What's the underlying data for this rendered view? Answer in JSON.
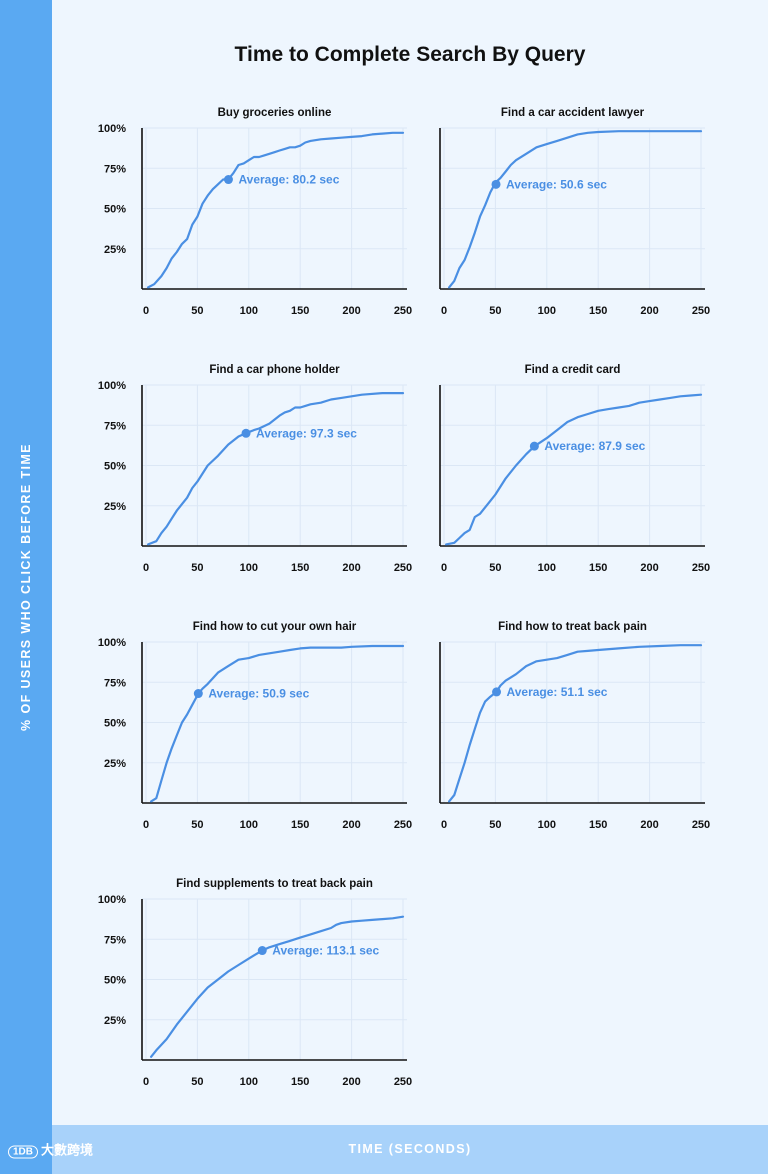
{
  "page": {
    "title": "Time to Complete Search By Query",
    "y_axis_title": "% OF USERS WHO CLICK BEFORE TIME",
    "x_axis_title": "TIME (SECONDS)",
    "watermark": "大數跨境",
    "watermark_logo": "1DB"
  },
  "colors": {
    "line": "#4a8fe3",
    "annotation": "#4a8fe3",
    "left_band": "#5aa9f2",
    "bottom_band": "#a8d2fa",
    "background": "#eef6fe",
    "grid": "#dbe7f5",
    "axis": "#111111"
  },
  "chart_data": [
    {
      "type": "line",
      "title": "Buy groceries online",
      "xlim": [
        0,
        250
      ],
      "ylim": [
        0,
        100
      ],
      "xticks": [
        0,
        50,
        100,
        150,
        200,
        250
      ],
      "yticks": [
        25,
        50,
        75,
        100
      ],
      "ytick_labels": [
        "25%",
        "50%",
        "75%",
        "100%"
      ],
      "annotation": {
        "text": "Average: 80.2 sec",
        "x": 80.2,
        "y": 68
      },
      "series": [
        {
          "x": [
            2,
            8,
            15,
            20,
            25,
            30,
            35,
            40,
            45,
            50,
            55,
            60,
            65,
            70,
            75,
            80,
            85,
            90,
            95,
            100,
            105,
            110,
            115,
            120,
            125,
            130,
            135,
            140,
            145,
            150,
            155,
            160,
            170,
            180,
            190,
            200,
            210,
            220,
            230,
            240,
            250
          ],
          "y": [
            1,
            3,
            8,
            13,
            19,
            23,
            28,
            31,
            40,
            45,
            53,
            58,
            62,
            65,
            68,
            68,
            72,
            77,
            78,
            80,
            82,
            82,
            83,
            84,
            85,
            86,
            87,
            88,
            88,
            89,
            91,
            92,
            93,
            93.5,
            94,
            94.5,
            95,
            96,
            96.5,
            97,
            97
          ]
        }
      ]
    },
    {
      "type": "line",
      "title": "Find a car accident lawyer",
      "xlim": [
        0,
        250
      ],
      "ylim": [
        0,
        100
      ],
      "xticks": [
        0,
        50,
        100,
        150,
        200,
        250
      ],
      "yticks": [
        25,
        50,
        75,
        100
      ],
      "ytick_labels": [],
      "annotation": {
        "text": "Average: 50.6 sec",
        "x": 50.6,
        "y": 65
      },
      "series": [
        {
          "x": [
            5,
            10,
            15,
            20,
            25,
            30,
            35,
            40,
            45,
            50,
            55,
            60,
            65,
            70,
            80,
            90,
            100,
            110,
            120,
            130,
            140,
            150,
            170,
            200,
            230,
            250
          ],
          "y": [
            1,
            5,
            13,
            18,
            26,
            35,
            45,
            52,
            60,
            66,
            69,
            73,
            77,
            80,
            84,
            88,
            90,
            92,
            94,
            96,
            97,
            97.5,
            98,
            98,
            98,
            98
          ]
        }
      ]
    },
    {
      "type": "line",
      "title": "Find a car phone holder",
      "xlim": [
        0,
        250
      ],
      "ylim": [
        0,
        100
      ],
      "xticks": [
        0,
        50,
        100,
        150,
        200,
        250
      ],
      "yticks": [
        25,
        50,
        75,
        100
      ],
      "ytick_labels": [
        "25%",
        "50%",
        "75%",
        "100%"
      ],
      "annotation": {
        "text": "Average: 97.3 sec",
        "x": 97.3,
        "y": 70
      },
      "series": [
        {
          "x": [
            2,
            10,
            15,
            20,
            25,
            30,
            35,
            40,
            45,
            50,
            55,
            60,
            70,
            80,
            90,
            97,
            105,
            110,
            120,
            130,
            135,
            140,
            145,
            150,
            155,
            160,
            170,
            180,
            190,
            200,
            210,
            230,
            250
          ],
          "y": [
            1,
            3,
            8,
            12,
            17,
            22,
            26,
            30,
            36,
            40,
            45,
            50,
            56,
            63,
            68,
            70,
            72,
            73,
            76,
            81,
            83,
            84,
            86,
            86,
            87,
            88,
            89,
            91,
            92,
            93,
            94,
            95,
            95
          ]
        }
      ]
    },
    {
      "type": "line",
      "title": "Find a credit card",
      "xlim": [
        0,
        250
      ],
      "ylim": [
        0,
        100
      ],
      "xticks": [
        0,
        50,
        100,
        150,
        200,
        250
      ],
      "yticks": [
        25,
        50,
        75,
        100
      ],
      "ytick_labels": [],
      "annotation": {
        "text": "Average: 87.9 sec",
        "x": 87.9,
        "y": 62
      },
      "series": [
        {
          "x": [
            2,
            10,
            15,
            20,
            25,
            30,
            35,
            40,
            45,
            50,
            60,
            70,
            80,
            88,
            95,
            100,
            110,
            120,
            130,
            140,
            150,
            160,
            170,
            180,
            190,
            200,
            210,
            220,
            230,
            240,
            250
          ],
          "y": [
            1,
            2,
            5,
            8,
            10,
            18,
            20,
            24,
            28,
            32,
            42,
            50,
            57,
            62,
            65,
            67,
            72,
            77,
            80,
            82,
            84,
            85,
            86,
            87,
            89,
            90,
            91,
            92,
            93,
            93.5,
            94
          ]
        }
      ]
    },
    {
      "type": "line",
      "title": "Find how to cut your own hair",
      "xlim": [
        0,
        250
      ],
      "ylim": [
        0,
        100
      ],
      "xticks": [
        0,
        50,
        100,
        150,
        200,
        250
      ],
      "yticks": [
        25,
        50,
        75,
        100
      ],
      "ytick_labels": [
        "25%",
        "50%",
        "75%",
        "100%"
      ],
      "annotation": {
        "text": "Average: 50.9 sec",
        "x": 50.9,
        "y": 68
      },
      "series": [
        {
          "x": [
            5,
            10,
            15,
            20,
            25,
            30,
            35,
            40,
            45,
            51,
            55,
            60,
            70,
            80,
            90,
            100,
            110,
            120,
            130,
            140,
            150,
            160,
            170,
            180,
            190,
            200,
            220,
            240,
            250
          ],
          "y": [
            1,
            3,
            14,
            25,
            34,
            42,
            50,
            55,
            61,
            68,
            71,
            74,
            81,
            85,
            89,
            90,
            92,
            93,
            94,
            95,
            96,
            96.5,
            96.5,
            96.5,
            96.5,
            97,
            97.5,
            97.5,
            97.5
          ]
        }
      ]
    },
    {
      "type": "line",
      "title": "Find how to treat back pain",
      "xlim": [
        0,
        250
      ],
      "ylim": [
        0,
        100
      ],
      "xticks": [
        0,
        50,
        100,
        150,
        200,
        250
      ],
      "yticks": [
        25,
        50,
        75,
        100
      ],
      "ytick_labels": [],
      "annotation": {
        "text": "Average: 51.1 sec",
        "x": 51.1,
        "y": 69
      },
      "series": [
        {
          "x": [
            5,
            10,
            15,
            20,
            25,
            30,
            35,
            40,
            45,
            51,
            55,
            60,
            70,
            80,
            90,
            100,
            110,
            120,
            130,
            140,
            150,
            170,
            190,
            210,
            230,
            250
          ],
          "y": [
            1,
            5,
            15,
            25,
            36,
            46,
            56,
            63,
            66,
            69,
            73,
            76,
            80,
            85,
            88,
            89,
            90,
            92,
            94,
            94.5,
            95,
            96,
            97,
            97.5,
            98,
            98
          ]
        }
      ]
    },
    {
      "type": "line",
      "title": "Find supplements to treat back pain",
      "xlim": [
        0,
        250
      ],
      "ylim": [
        0,
        100
      ],
      "xticks": [
        0,
        50,
        100,
        150,
        200,
        250
      ],
      "yticks": [
        25,
        50,
        75,
        100
      ],
      "ytick_labels": [
        "25%",
        "50%",
        "75%",
        "100%"
      ],
      "annotation": {
        "text": "Average: 113.1 sec",
        "x": 113.1,
        "y": 68
      },
      "series": [
        {
          "x": [
            5,
            10,
            20,
            30,
            40,
            50,
            60,
            70,
            80,
            90,
            100,
            105,
            113,
            120,
            130,
            140,
            150,
            160,
            170,
            180,
            185,
            190,
            200,
            210,
            220,
            230,
            240,
            250
          ],
          "y": [
            2,
            6,
            13,
            22,
            30,
            38,
            45,
            50,
            55,
            59,
            63,
            65,
            68,
            70,
            72,
            74,
            76,
            78,
            80,
            82,
            84,
            85,
            86,
            86.5,
            87,
            87.5,
            88,
            89
          ]
        }
      ]
    }
  ]
}
